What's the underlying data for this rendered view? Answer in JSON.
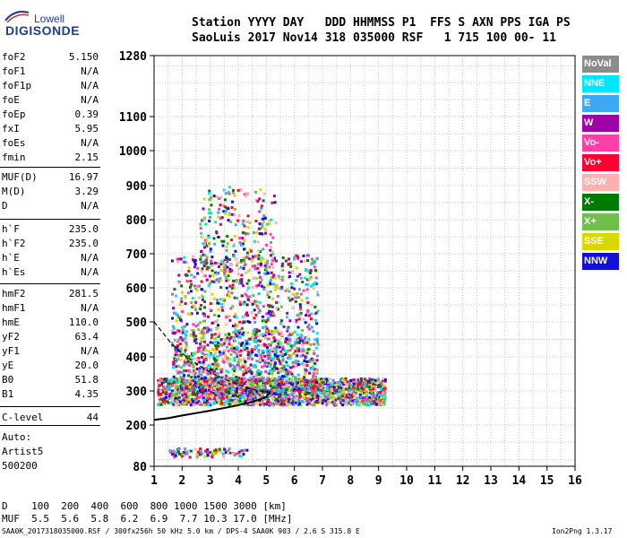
{
  "logo": {
    "brand": "Lowell",
    "product": "DIGISONDE"
  },
  "header": {
    "line1": "Station YYYY DAY   DDD HHMMSS P1  FFS S AXN PPS IGA PS",
    "line2": "SaoLuis 2017 Nov14 318 035000 RSF   1 715 100 00- 11"
  },
  "params": [
    {
      "name": "foF2",
      "value": "5.150"
    },
    {
      "name": "foF1",
      "value": "N/A"
    },
    {
      "name": "foF1p",
      "value": "N/A"
    },
    {
      "name": "foE",
      "value": "N/A"
    },
    {
      "name": "foEp",
      "value": "0.39"
    },
    {
      "name": "fxI",
      "value": "5.95"
    },
    {
      "name": "foEs",
      "value": "N/A"
    },
    {
      "name": "fmin",
      "value": "2.15"
    },
    {
      "name": "MUF(D)",
      "value": "16.97"
    },
    {
      "name": "M(D)",
      "value": "3.29"
    },
    {
      "name": "D",
      "value": "N/A"
    },
    {
      "name": "h`F",
      "value": "235.0"
    },
    {
      "name": "h`F2",
      "value": "235.0"
    },
    {
      "name": "h`E",
      "value": "N/A"
    },
    {
      "name": "h`Es",
      "value": "N/A"
    },
    {
      "name": "hmF2",
      "value": "281.5"
    },
    {
      "name": "hmF1",
      "value": "N/A"
    },
    {
      "name": "hmE",
      "value": "110.0"
    },
    {
      "name": "yF2",
      "value": "63.4"
    },
    {
      "name": "yF1",
      "value": "N/A"
    },
    {
      "name": "yE",
      "value": "20.0"
    },
    {
      "name": "B0",
      "value": "51.8"
    },
    {
      "name": "B1",
      "value": "4.35"
    },
    {
      "name": "C-level",
      "value": "44"
    }
  ],
  "scaling": {
    "line1": "Auto:",
    "line2": "Artist5",
    "line3": "500200"
  },
  "legend": [
    {
      "label": "NoVal",
      "color": "#8c8c8c"
    },
    {
      "label": "NNE",
      "color": "#00e5ff"
    },
    {
      "label": "E",
      "color": "#3ea8f5"
    },
    {
      "label": "W",
      "color": "#a000a8"
    },
    {
      "label": "Vo-",
      "color": "#ff3ea8"
    },
    {
      "label": "Vo+",
      "color": "#ff0030"
    },
    {
      "label": "SSW",
      "color": "#ffb0b0"
    },
    {
      "label": "X-",
      "color": "#007a00"
    },
    {
      "label": "X+",
      "color": "#6fbf4a"
    },
    {
      "label": "SSE",
      "color": "#d8d800"
    },
    {
      "label": "NNW",
      "color": "#1010d8"
    }
  ],
  "muf_table": {
    "line1": "D    100  200  400  600  800 1000 1500 3000 [km]",
    "line2": "MUF  5.5  5.6  5.8  6.2  6.9  7.7 10.3 17.0 [MHz]"
  },
  "footer": {
    "left": "SAA0K_2017318035000.RSF / 300fx256h 50 kHz 5.0 km / DPS-4 SAA0K 903 / 2.6 S 315.8 E",
    "right": "Ion2Png 1.3.17"
  },
  "chart_data": {
    "type": "scatter",
    "xlim": [
      1,
      16
    ],
    "ylim": [
      80,
      1280
    ],
    "x_ticks": [
      "1",
      "2",
      "3",
      "4",
      "5",
      "6",
      "7",
      "8",
      "9",
      "10",
      "11",
      "12",
      "13",
      "14",
      "15",
      "16"
    ],
    "y_ticks": [
      "80",
      "200",
      "300",
      "400",
      "500",
      "600",
      "700",
      "800",
      "900",
      "1000",
      "1100",
      "1280"
    ],
    "y_tick_values": [
      80,
      200,
      300,
      400,
      500,
      600,
      700,
      800,
      900,
      1000,
      1100,
      1280
    ],
    "grid": true,
    "trace": {
      "color": "#000000",
      "x": [
        1.0,
        1.5,
        2.0,
        2.5,
        3.0,
        3.5,
        4.0,
        4.5,
        5.0,
        5.15
      ],
      "y": [
        215,
        220,
        228,
        235,
        242,
        250,
        258,
        268,
        282,
        300
      ]
    },
    "trace_dashed": {
      "color": "#000000",
      "x": [
        1.0,
        1.3,
        1.6,
        2.0,
        2.5,
        3.0,
        3.5,
        4.0,
        4.5,
        5.0,
        5.15
      ],
      "y": [
        500,
        470,
        440,
        410,
        380,
        355,
        335,
        318,
        305,
        295,
        292
      ]
    }
  }
}
